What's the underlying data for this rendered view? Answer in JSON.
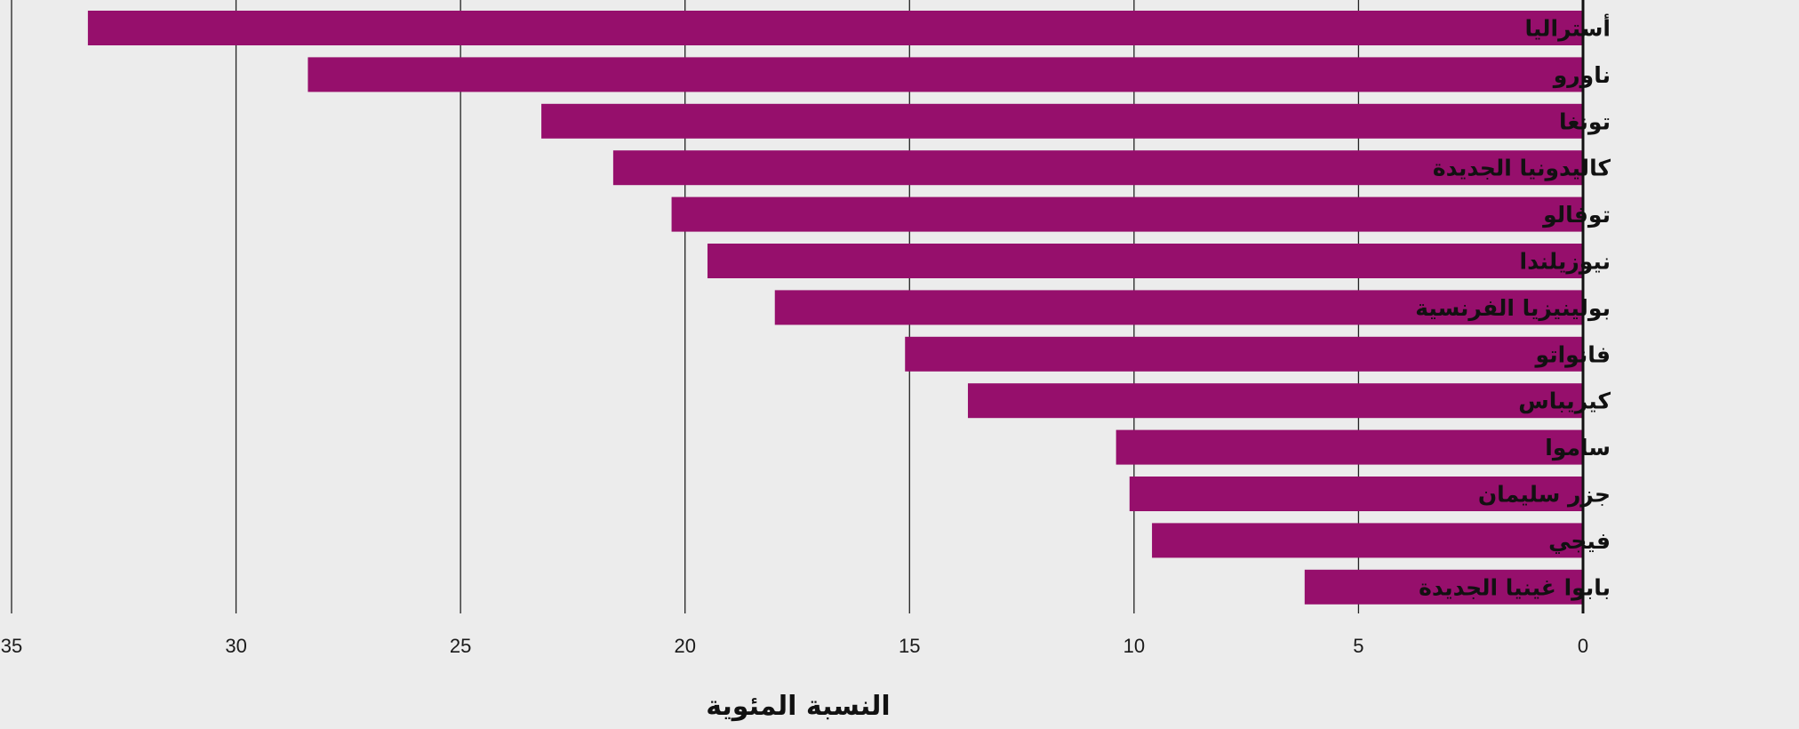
{
  "chart_data": {
    "type": "bar",
    "orientation": "horizontal",
    "direction": "rtl",
    "categories": [
      "أستراليا",
      "ناورو",
      "تونغا",
      "كاليدونيا الجديدة",
      "توفالو",
      "نيوزيلندا",
      "بولينيزيا الفرنسية",
      "فانواتو",
      "كيريباس",
      "ساموا",
      "جزر سليمان",
      "فيجي",
      "بابوا غينيا الجديدة"
    ],
    "values": [
      33.3,
      28.4,
      23.2,
      21.6,
      20.3,
      19.5,
      18.0,
      15.1,
      13.7,
      10.4,
      10.1,
      9.6,
      6.2
    ],
    "xlabel": "النسبة المئوية",
    "ylabel": "",
    "title": "",
    "xlim": [
      0,
      35
    ],
    "xticks": [
      0,
      5,
      10,
      15,
      20,
      25,
      30,
      35
    ],
    "grid": true,
    "bar_color": "#960f6c",
    "background_color": "#ececec"
  }
}
